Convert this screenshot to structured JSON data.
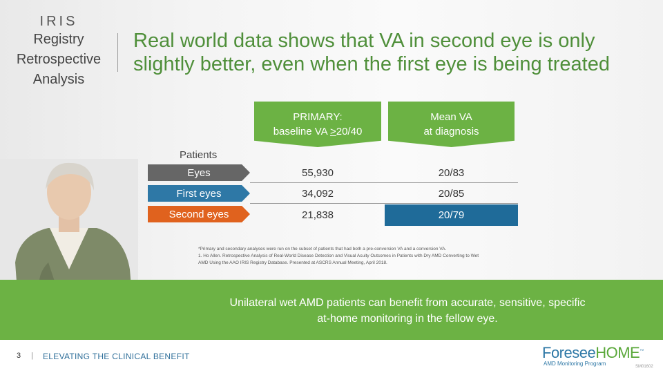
{
  "side": {
    "line1": "IRIS",
    "line2": "Registry",
    "line3": "Retrospective",
    "line4": "Analysis"
  },
  "headline": "Real world data shows that VA in second eye is only slightly better, even when the first eye is being treated",
  "columns": {
    "primary_l1": "PRIMARY:",
    "primary_l2_prefix": "baseline VA ",
    "primary_l2_under": ">",
    "primary_l2_suffix": "20/40",
    "mean_l1": "Mean VA",
    "mean_l2": "at diagnosis"
  },
  "patients_label": "Patients",
  "rows": [
    {
      "label": "Eyes",
      "primary": "55,930",
      "mean": "20/83"
    },
    {
      "label": "First eyes",
      "primary": "34,092",
      "mean": "20/85"
    },
    {
      "label": "Second eyes",
      "primary": "21,838",
      "mean": "20/79"
    }
  ],
  "footnote": {
    "line1": "*Primary and secondary analyses were run on the subset of patients that had both a pre-conversion VA and a conversion VA.",
    "line2": "1. Ho Allen. Retrospective Analysis of Real-World Disease Detection and Visual Acuity Outcomes in Patients with Dry AMD Converting to Wet AMD Using the AAO IRIS Registry Database. Presented at ASCRS Annual Meeting, April 2018."
  },
  "banner": "Unilateral wet AMD patients can benefit from accurate, sensitive, specific at-home monitoring in the fellow eye.",
  "footer": {
    "page": "3",
    "sep": "|",
    "title": "ELEVATING THE CLINICAL BENEFIT",
    "code": "SM01602"
  },
  "logo": {
    "name_part1": "Foresee",
    "name_part2": "HOME",
    "tm": "™",
    "tagline": "AMD Monitoring Program"
  },
  "colors": {
    "green": "#6cb244",
    "blue": "#2e78a6",
    "dark_blue": "#1f6b99",
    "orange": "#e0621e",
    "gray": "#666666"
  }
}
